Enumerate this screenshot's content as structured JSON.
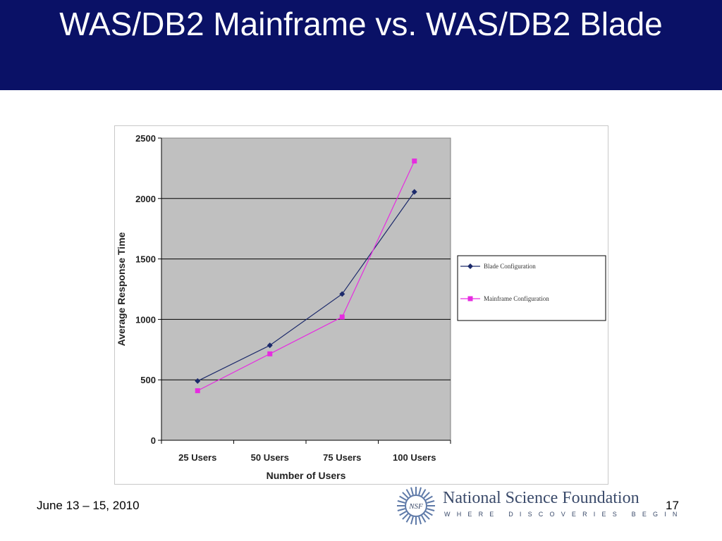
{
  "slide": {
    "title": "WAS/DB2 Mainframe vs. WAS/DB2 Blade",
    "date": "June 13 – 15, 2010",
    "page_number": "17"
  },
  "logo": {
    "seal_text": "NSF",
    "name": "National Science Foundation",
    "tagline": "WHERE DISCOVERIES BEGIN"
  },
  "colors": {
    "title_bar": "#0a1166",
    "plot_area": "#c0c0c0",
    "blade_series": "#1c2a6b",
    "mainframe_series": "#e62ce0"
  },
  "chart_data": {
    "type": "line",
    "categories": [
      "25 Users",
      "50 Users",
      "75 Users",
      "100 Users"
    ],
    "series": [
      {
        "name": "Blade Configuration",
        "marker": "diamond",
        "color": "#1c2a6b",
        "values": [
          490,
          785,
          1210,
          2055
        ]
      },
      {
        "name": "Mainframe Configuration",
        "marker": "square",
        "color": "#e62ce0",
        "values": [
          410,
          715,
          1020,
          2310
        ]
      }
    ],
    "xlabel": "Number of Users",
    "ylabel": "Average Response Time",
    "ylim": [
      0,
      2500
    ],
    "yticks": [
      "0",
      "500",
      "1000",
      "1500",
      "2000",
      "2500"
    ],
    "grid": true,
    "legend": "right"
  }
}
